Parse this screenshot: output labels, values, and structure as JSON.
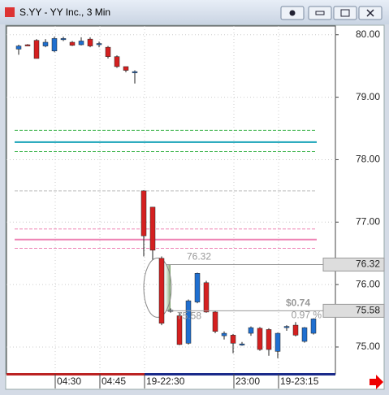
{
  "window_title": "S.YY - YY Inc., 3 Min",
  "chart_data": {
    "type": "candlestick",
    "categories": [
      null,
      null,
      null,
      null,
      "04:30",
      null,
      null,
      null,
      null,
      "04:45",
      null,
      null,
      null,
      null,
      "19-22:30",
      null,
      null,
      null,
      null,
      null,
      null,
      null,
      null,
      null,
      "23:00",
      null,
      null,
      null,
      null,
      "19-23:15",
      null,
      null,
      null,
      null
    ],
    "open": [
      79.77,
      79.84,
      79.91,
      79.82,
      79.74,
      79.93,
      79.88,
      79.84,
      79.93,
      79.85,
      79.8,
      79.65,
      79.49,
      79.41,
      77.5,
      77.24,
      76.42,
      75.57,
      75.5,
      75.06,
      75.72,
      76.03,
      75.56,
      75.18,
      75.19,
      75.04,
      75.22,
      75.3,
      75.28,
      74.93,
      75.32,
      75.35,
      75.09,
      75.22
    ],
    "high": [
      79.84,
      79.85,
      79.93,
      79.93,
      79.97,
      79.97,
      79.9,
      79.96,
      79.96,
      79.89,
      79.82,
      79.67,
      79.49,
      79.43,
      77.51,
      77.24,
      76.45,
      75.62,
      75.55,
      75.76,
      76.19,
      76.06,
      75.58,
      75.25,
      75.21,
      75.08,
      75.33,
      75.32,
      75.3,
      75.23,
      75.35,
      75.4,
      75.32,
      75.46
    ],
    "low": [
      79.68,
      79.82,
      79.62,
      79.8,
      79.72,
      79.9,
      79.82,
      79.83,
      79.8,
      79.8,
      79.62,
      79.47,
      79.4,
      79.22,
      76.45,
      76.4,
      75.35,
      75.55,
      75.03,
      75.04,
      75.7,
      75.55,
      75.22,
      75.12,
      74.9,
      75.02,
      75.18,
      74.94,
      74.86,
      74.82,
      75.26,
      75.17,
      75.07,
      75.2
    ],
    "close": [
      79.82,
      79.83,
      79.62,
      79.88,
      79.94,
      79.94,
      79.83,
      79.9,
      79.82,
      79.86,
      79.65,
      79.49,
      79.43,
      79.41,
      76.78,
      76.55,
      75.38,
      75.59,
      75.04,
      75.74,
      76.18,
      75.56,
      75.25,
      75.22,
      75.06,
      75.05,
      75.31,
      74.96,
      74.96,
      75.22,
      75.33,
      75.19,
      75.31,
      75.45
    ],
    "up_color": "#1f6fd0",
    "down_color": "#d42020",
    "ylim": [
      74.57,
      80.14
    ],
    "yticks": [
      {
        "value": 80,
        "label": "80.00"
      },
      {
        "value": 79,
        "label": "79.00"
      },
      {
        "value": 78,
        "label": "78.00"
      },
      {
        "value": 77,
        "label": "77.00"
      },
      {
        "value": 76,
        "label": "76.00"
      },
      {
        "value": 75,
        "label": "75.00"
      }
    ],
    "grid": true,
    "reference_lines": [
      {
        "value": 78.47,
        "color": "#3cb44b",
        "style": "dashed"
      },
      {
        "value": 78.13,
        "color": "#3cb44b",
        "style": "dashed"
      },
      {
        "value": 78.28,
        "color": "#17a2b8",
        "style": "solid"
      },
      {
        "value": 77.5,
        "color": "#bbbbbb",
        "style": "dashed"
      },
      {
        "value": 76.89,
        "color": "#ee82b4",
        "style": "dashed"
      },
      {
        "value": 76.72,
        "color": "#ee82b4",
        "style": "solid"
      },
      {
        "value": 76.58,
        "color": "#ee82b4",
        "style": "dashed"
      }
    ],
    "price_labels": [
      76.32,
      75.58
    ],
    "measure_change": "$0.74",
    "measure_percent": "0.97 %"
  }
}
